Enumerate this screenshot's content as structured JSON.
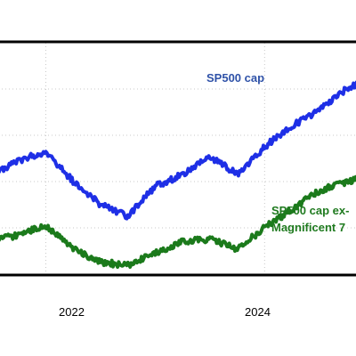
{
  "chart_data": {
    "type": "line",
    "title": "",
    "xlabel": "",
    "ylabel": "",
    "x_tick_labels": [
      "2022",
      "2024"
    ],
    "x": [
      "2021-07",
      "2021-10",
      "2022-01",
      "2022-04",
      "2022-07",
      "2022-10",
      "2023-01",
      "2023-04",
      "2023-07",
      "2023-10",
      "2024-01",
      "2024-04",
      "2024-07",
      "2024-10",
      "2024-12"
    ],
    "xlim": [
      "2021-07",
      "2024-12"
    ],
    "ylim": [
      0,
      100
    ],
    "grid": true,
    "series": [
      {
        "name": "SP500 cap",
        "color": "#1e2fe6",
        "values": [
          43,
          49,
          53,
          40,
          30,
          25,
          38,
          43,
          51,
          43,
          55,
          64,
          71,
          80,
          84
        ]
      },
      {
        "name": "SP500 cap ex-Magnificent 7",
        "color": "#1b7a1b",
        "values": [
          14,
          17,
          21,
          11,
          5,
          4,
          9,
          14,
          15,
          11,
          20,
          28,
          36,
          40,
          42
        ]
      }
    ],
    "annotations": [
      "SP500 cap",
      "SP500 cap ex-",
      "Magnificent 7"
    ]
  }
}
